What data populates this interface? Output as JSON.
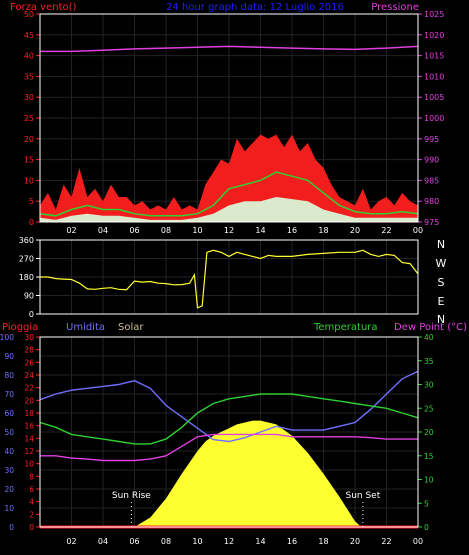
{
  "colors": {
    "background": "#000000",
    "frame": "#ffffff",
    "wind": "#ff2020",
    "wind_avg": "#30d030",
    "wind_min": "#d8ffe0",
    "pressure": "#e040e0",
    "direction": "#ffff30",
    "rain": "#ff2020",
    "humidity": "#7070ff",
    "solar": "#ffff30",
    "temperature": "#30d030",
    "dew_point": "#e040e0",
    "tick_red": "#ff2020",
    "tick_green": "#30d030",
    "tick_blue": "#7070ff",
    "tick_magenta": "#e040e0",
    "title_blue": "#2020ff"
  },
  "header": {
    "title": "24 hour graph data: 12 Luglio 2016",
    "left_label": "Forza vento()",
    "right_label": "Pressione"
  },
  "direction_letters": [
    "N",
    "W",
    "S",
    "E",
    "N"
  ],
  "lower_legend": {
    "rain": "Pioggia",
    "humidity": "Umidita",
    "solar": "Solar",
    "temperature": "Temperatura",
    "dew_point": "Dew Point (°C)"
  },
  "sun_markers": {
    "rise": "Sun Rise",
    "set": "Sun Set"
  },
  "chart_data": [
    {
      "type": "line",
      "id": "wind-pressure",
      "x_range": [
        0,
        24
      ],
      "x_ticks": [
        "02",
        "04",
        "06",
        "08",
        "10",
        "12",
        "14",
        "16",
        "18",
        "20",
        "22",
        "00"
      ],
      "left_axis": {
        "range": [
          0,
          50
        ],
        "ticks": [
          0,
          5,
          10,
          15,
          20,
          25,
          30,
          35,
          40,
          45,
          50
        ]
      },
      "right_axis": {
        "range": [
          975,
          1025
        ],
        "ticks": [
          975,
          980,
          985,
          990,
          995,
          1000,
          1005,
          1010,
          1015,
          1020,
          1025
        ]
      },
      "series": [
        {
          "name": "Forza vento",
          "role": "wind_max",
          "x": [
            0,
            0.5,
            1,
            1.5,
            2,
            2.5,
            3,
            3.5,
            4,
            4.5,
            5,
            5.5,
            6,
            6.5,
            7,
            7.5,
            8,
            8.5,
            9,
            9.5,
            10,
            10.5,
            11,
            11.5,
            12,
            12.5,
            13,
            13.5,
            14,
            14.5,
            15,
            15.5,
            16,
            16.5,
            17,
            17.5,
            18,
            18.5,
            19,
            19.5,
            20,
            20.5,
            21,
            21.5,
            22,
            22.5,
            23,
            23.5,
            24
          ],
          "y": [
            4,
            7,
            3,
            9,
            6,
            13,
            6,
            8,
            5,
            9,
            6,
            6,
            4,
            5,
            3,
            4,
            3,
            6,
            3,
            4,
            3,
            9,
            12,
            15,
            14,
            20,
            17,
            19,
            21,
            20,
            21,
            18,
            21,
            17,
            19,
            15,
            13,
            9,
            6,
            5,
            4,
            8,
            3,
            5,
            6,
            4,
            7,
            5,
            4
          ]
        },
        {
          "name": "Forza vento media",
          "role": "wind_avg",
          "x": [
            0,
            1,
            2,
            3,
            4,
            5,
            6,
            7,
            8,
            9,
            10,
            11,
            12,
            13,
            14,
            15,
            16,
            17,
            18,
            19,
            20,
            21,
            22,
            23,
            24
          ],
          "y": [
            2,
            1.5,
            3,
            4,
            3,
            3,
            2,
            1.5,
            1.5,
            1.5,
            2,
            4,
            8,
            9,
            10,
            12,
            11,
            10,
            7,
            4,
            2.5,
            2,
            2,
            2.5,
            2
          ]
        },
        {
          "name": "Forza vento min",
          "role": "wind_min",
          "x": [
            0,
            1,
            2,
            3,
            4,
            5,
            6,
            7,
            8,
            9,
            10,
            11,
            12,
            13,
            14,
            15,
            16,
            17,
            18,
            19,
            20,
            21,
            22,
            23,
            24
          ],
          "y": [
            1,
            0.5,
            1.5,
            2,
            1.5,
            1.5,
            1,
            0.5,
            0.5,
            0.5,
            1,
            2,
            4,
            5,
            5,
            6,
            5.5,
            5,
            3,
            2,
            1,
            1,
            1,
            1,
            1
          ]
        },
        {
          "name": "Pressione",
          "role": "pressure",
          "axis": "right",
          "x": [
            0,
            2,
            4,
            6,
            8,
            10,
            12,
            14,
            16,
            18,
            20,
            22,
            24
          ],
          "y": [
            1016,
            1016,
            1016.3,
            1016.6,
            1016.8,
            1017,
            1017.2,
            1017,
            1016.8,
            1016.6,
            1016.5,
            1016.8,
            1017.2
          ]
        }
      ]
    },
    {
      "type": "line",
      "id": "wind-direction",
      "x_range": [
        0,
        24
      ],
      "left_axis": {
        "range": [
          0,
          360
        ],
        "ticks": [
          0,
          90,
          180,
          270,
          360
        ]
      },
      "series": [
        {
          "name": "Direzione vento",
          "role": "direction",
          "x": [
            0,
            0.5,
            1,
            1.5,
            2,
            2.5,
            3,
            3.5,
            4,
            4.5,
            5,
            5.5,
            6,
            6.5,
            7,
            7.5,
            8,
            8.5,
            9,
            9.5,
            9.8,
            10,
            10.3,
            10.6,
            11,
            11.5,
            12,
            12.5,
            13,
            13.5,
            14,
            14.5,
            15,
            16,
            17,
            18,
            19,
            20,
            20.5,
            21,
            21.5,
            22,
            22.5,
            23,
            23.5,
            24
          ],
          "y": [
            180,
            180,
            172,
            170,
            168,
            150,
            122,
            120,
            125,
            128,
            120,
            118,
            160,
            155,
            158,
            150,
            148,
            142,
            143,
            150,
            190,
            30,
            40,
            300,
            310,
            300,
            280,
            300,
            290,
            280,
            270,
            285,
            280,
            280,
            290,
            295,
            300,
            300,
            310,
            290,
            280,
            290,
            285,
            250,
            245,
            195
          ]
        }
      ]
    },
    {
      "type": "area",
      "id": "climate",
      "x_range": [
        0,
        24
      ],
      "x_ticks": [
        "02",
        "04",
        "06",
        "08",
        "10",
        "12",
        "14",
        "16",
        "18",
        "20",
        "22",
        "00"
      ],
      "axes": {
        "humidity": {
          "range": [
            0,
            100
          ],
          "ticks": [
            0,
            10,
            20,
            30,
            40,
            50,
            60,
            70,
            80,
            90,
            100
          ]
        },
        "rain": {
          "range": [
            0,
            30
          ],
          "ticks": [
            0,
            2,
            4,
            6,
            8,
            10,
            12,
            14,
            16,
            18,
            20,
            22,
            24,
            26,
            28,
            30
          ]
        },
        "temperature": {
          "range": [
            0,
            40
          ],
          "ticks": [
            0,
            5,
            10,
            15,
            20,
            25,
            30,
            35,
            40
          ]
        }
      },
      "series": [
        {
          "name": "Umidita",
          "role": "humidity",
          "axis": "humidity",
          "x": [
            0,
            1,
            2,
            3,
            4,
            5,
            6,
            7,
            8,
            9,
            10,
            11,
            12,
            13,
            14,
            15,
            16,
            17,
            18,
            19,
            20,
            21,
            22,
            23,
            24
          ],
          "y": [
            67,
            70,
            72,
            73,
            74,
            75,
            77,
            73,
            64,
            58,
            52,
            46,
            45,
            47,
            50,
            53,
            51,
            51,
            51,
            53,
            55,
            62,
            70,
            78,
            82
          ]
        },
        {
          "name": "Temperatura",
          "role": "temperature",
          "axis": "temperature",
          "x": [
            0,
            1,
            2,
            3,
            4,
            5,
            6,
            7,
            8,
            9,
            10,
            11,
            12,
            13,
            14,
            15,
            16,
            17,
            18,
            19,
            20,
            21,
            22,
            23,
            24
          ],
          "y": [
            22,
            21,
            19.5,
            19,
            18.5,
            18,
            17.5,
            17.5,
            18.5,
            21,
            24,
            26,
            27,
            27.5,
            28,
            28,
            28,
            27.5,
            27,
            26.5,
            26,
            25.5,
            25,
            24,
            23
          ]
        },
        {
          "name": "Dew Point",
          "role": "dew_point",
          "axis": "temperature",
          "x": [
            0,
            1,
            2,
            3,
            4,
            5,
            6,
            7,
            8,
            9,
            10,
            11,
            12,
            13,
            14,
            15,
            16,
            17,
            18,
            19,
            20,
            21,
            22,
            23,
            24
          ],
          "y": [
            15,
            15,
            14.5,
            14.3,
            14,
            14,
            14,
            14.3,
            15,
            17,
            19,
            19.5,
            19.5,
            19.5,
            19.5,
            19.5,
            19,
            19,
            19,
            19,
            19,
            18.8,
            18.5,
            18.5,
            18.5
          ]
        },
        {
          "name": "Solar",
          "role": "solar",
          "axis": "humidity",
          "x": [
            0,
            5.8,
            6,
            7,
            8,
            9,
            10,
            10.5,
            11,
            11.5,
            12,
            12.5,
            13,
            13.5,
            14,
            14.5,
            15,
            16,
            17,
            18,
            19,
            20,
            20.4,
            20.6,
            24
          ],
          "y": [
            0,
            0,
            0,
            5,
            15,
            28,
            40,
            45,
            48,
            50,
            52,
            54,
            55,
            56,
            56,
            55,
            54,
            48,
            39,
            28,
            16,
            3,
            0,
            0,
            0
          ]
        },
        {
          "name": "Pioggia",
          "role": "rain",
          "axis": "rain",
          "x": [
            0,
            24
          ],
          "y": [
            0,
            0
          ]
        }
      ]
    }
  ]
}
